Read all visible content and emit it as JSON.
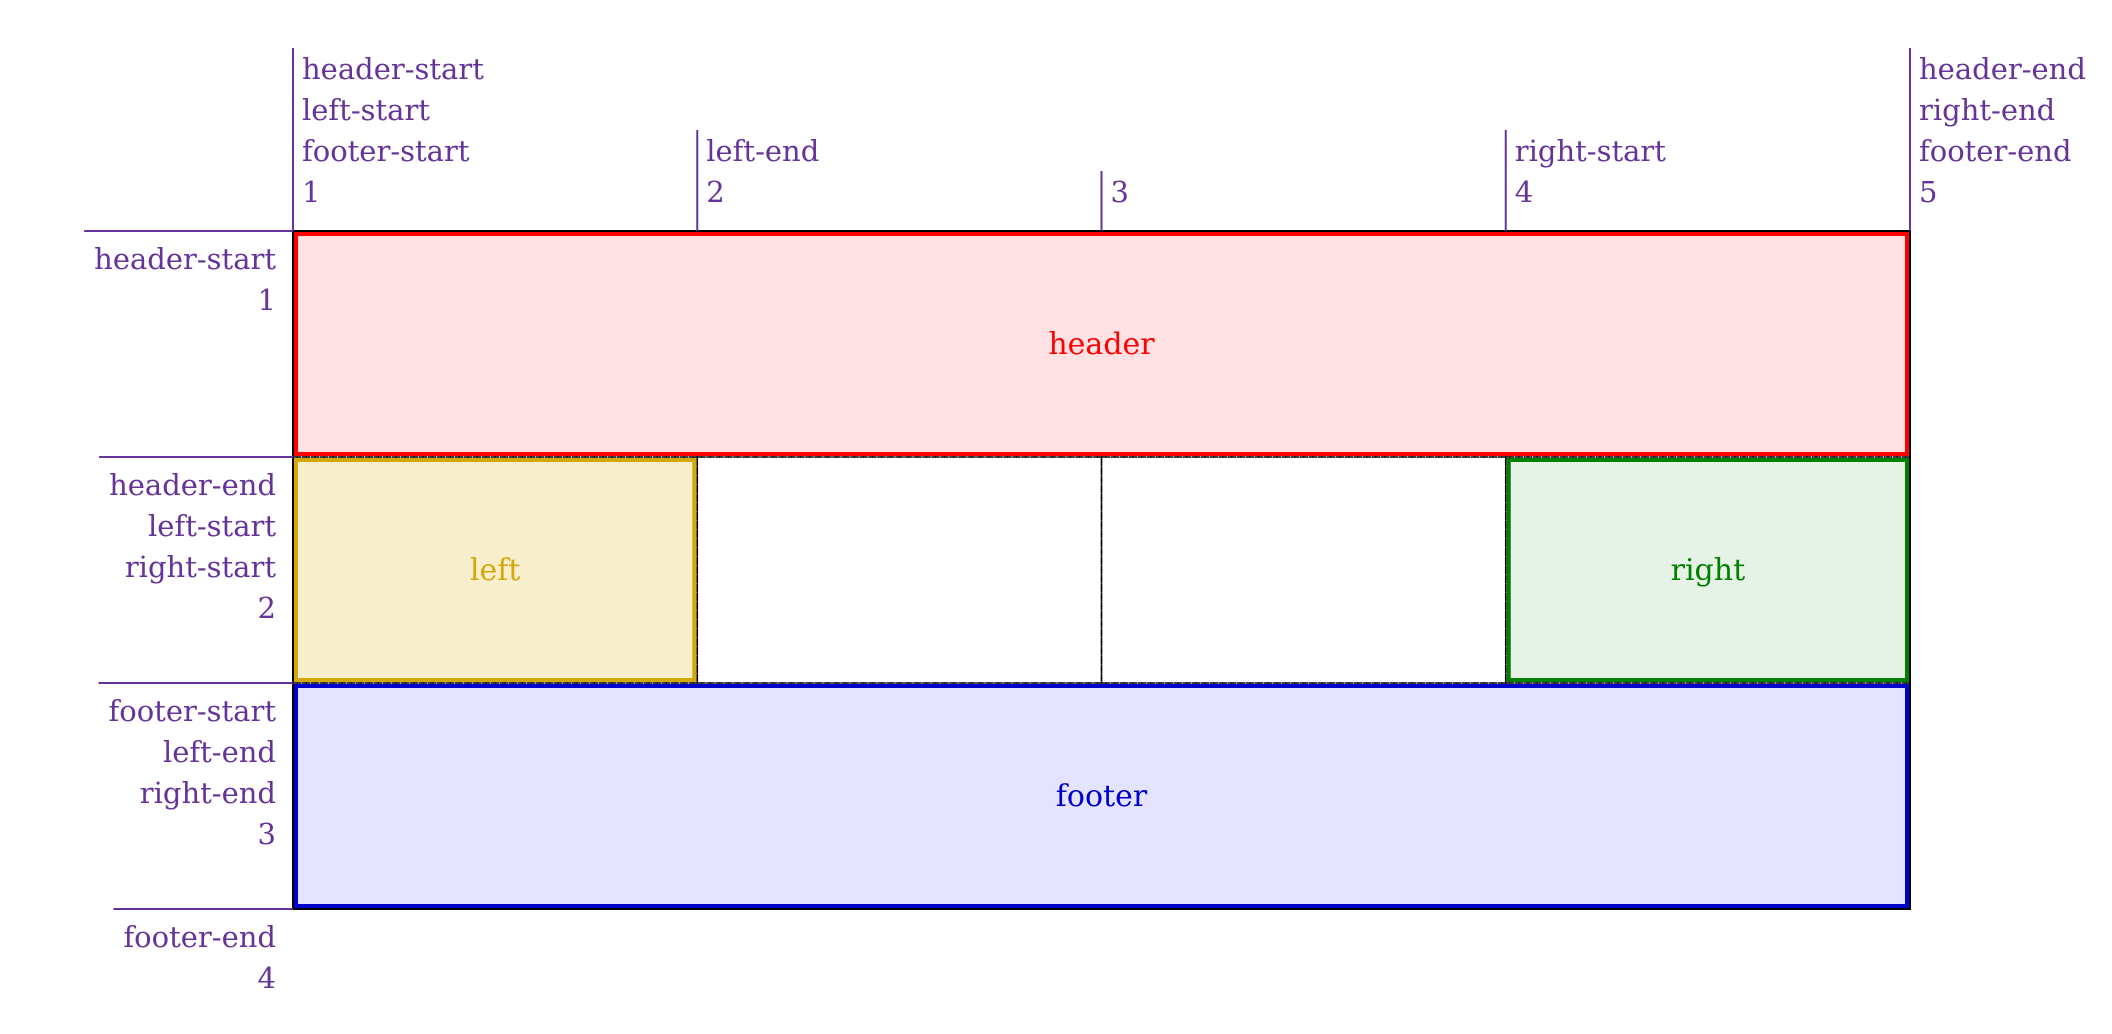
{
  "colors": {
    "line_label": "#663399",
    "grid_outline": "#000000",
    "header": {
      "stroke": "#ff0000",
      "fill": "#ffe1e3"
    },
    "left": {
      "stroke": "#d4a80c",
      "fill": "#f7eecb"
    },
    "right": {
      "stroke": "#008000",
      "fill": "#e5f2e5"
    },
    "footer": {
      "stroke": "#0000cc",
      "fill": "#e4e4ff"
    }
  },
  "grid": {
    "columns": 4,
    "rows": 3,
    "column_lines": [
      {
        "number": "1",
        "names": [
          "header-start",
          "left-start",
          "footer-start"
        ]
      },
      {
        "number": "2",
        "names": [
          "left-end"
        ]
      },
      {
        "number": "3",
        "names": []
      },
      {
        "number": "4",
        "names": [
          "right-start"
        ]
      },
      {
        "number": "5",
        "names": [
          "header-end",
          "right-end",
          "footer-end"
        ]
      }
    ],
    "row_lines": [
      {
        "number": "1",
        "names": [
          "header-start"
        ]
      },
      {
        "number": "2",
        "names": [
          "header-end",
          "left-start",
          "right-start"
        ]
      },
      {
        "number": "3",
        "names": [
          "footer-start",
          "left-end",
          "right-end"
        ]
      },
      {
        "number": "4",
        "names": [
          "footer-end"
        ]
      }
    ]
  },
  "areas": [
    {
      "key": "header",
      "label": "header",
      "col_span": [
        1,
        5
      ],
      "row_span": [
        1,
        2
      ]
    },
    {
      "key": "left",
      "label": "left",
      "col_span": [
        1,
        2
      ],
      "row_span": [
        2,
        3
      ]
    },
    {
      "key": "right",
      "label": "right",
      "col_span": [
        4,
        5
      ],
      "row_span": [
        2,
        3
      ]
    },
    {
      "key": "footer",
      "label": "footer",
      "col_span": [
        1,
        5
      ],
      "row_span": [
        3,
        4
      ]
    }
  ]
}
